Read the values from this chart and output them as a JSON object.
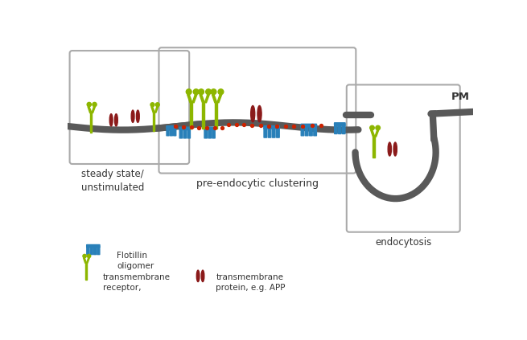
{
  "bg_color": "#ffffff",
  "membrane_color": "#595959",
  "flotillin_color": "#2980b9",
  "receptor_color": "#8db600",
  "protein_color": "#8b1a1a",
  "red_dot_color": "#cc2200",
  "box_color": "#aaaaaa",
  "text_color": "#333333",
  "label_steady": "steady state/\nunstimulated",
  "label_precluster": "pre-endocytic clustering",
  "label_endocytosis": "endocytosis",
  "label_pm": "PM",
  "legend_flotillin": "Flotillin\noligomer",
  "legend_receptor": "transmembrane\nreceptor,",
  "legend_protein": "transmembrane\nprotein, e.g. APP"
}
